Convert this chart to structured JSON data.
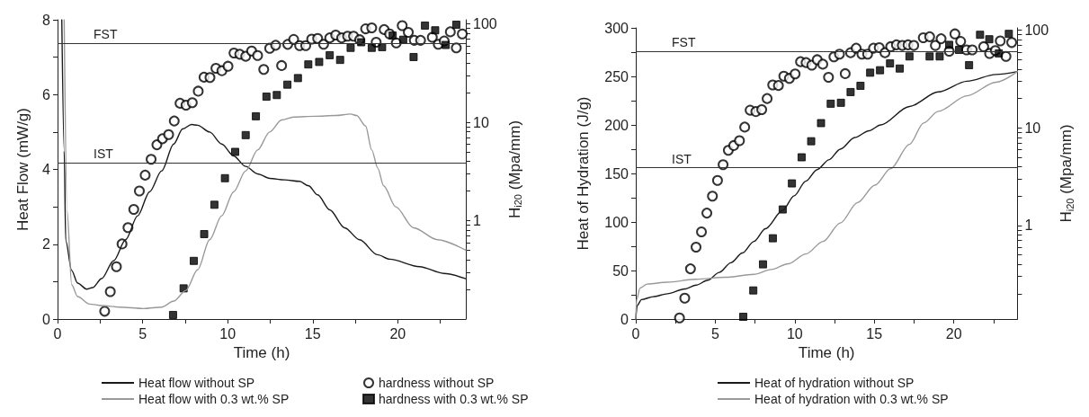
{
  "chart_data": [
    {
      "type": "line",
      "xlabel": "Time (h)",
      "ylabel": "Heat Flow (mW/g)",
      "y2label": "H$_{i20}$ (Mpa/mm)",
      "log": "y2",
      "legend": "bottom",
      "xlim": [
        0,
        24
      ],
      "xticks": [
        0,
        {
          "value": 2.5,
          "label": null
        },
        5,
        {
          "value": 7.5,
          "label": null
        },
        10,
        {
          "value": 12.5,
          "label": null
        },
        15,
        {
          "value": 17.5,
          "label": null
        },
        20,
        {
          "value": 22.5,
          "label": null
        }
      ],
      "ylim": [
        0,
        8
      ],
      "yticks": [
        0,
        {
          "value": 1,
          "label": null
        },
        2,
        {
          "value": 3,
          "label": null
        },
        4,
        {
          "value": 5,
          "label": null
        },
        6,
        {
          "value": 7,
          "label": null
        },
        8
      ],
      "y2lim": [
        0.1,
        110
      ],
      "y2ticks": [
        {
          "value": 0.2,
          "label": null
        },
        {
          "value": 0.3,
          "label": null
        },
        {
          "value": 0.4,
          "label": null
        },
        {
          "value": 0.5,
          "label": null
        },
        {
          "value": 0.6,
          "label": null
        },
        {
          "value": 0.7,
          "label": null
        },
        {
          "value": 0.8,
          "label": null
        },
        {
          "value": 0.9,
          "label": null
        },
        1,
        {
          "value": 2,
          "label": null
        },
        {
          "value": 3,
          "label": null
        },
        {
          "value": 4,
          "label": null
        },
        {
          "value": 5,
          "label": null
        },
        {
          "value": 6,
          "label": null
        },
        {
          "value": 7,
          "label": null
        },
        {
          "value": 8,
          "label": null
        },
        {
          "value": 9,
          "label": null
        },
        10,
        {
          "value": 20,
          "label": null
        },
        {
          "value": 30,
          "label": null
        },
        {
          "value": 40,
          "label": null
        },
        {
          "value": 50,
          "label": null
        },
        {
          "value": 60,
          "label": null
        },
        {
          "value": 70,
          "label": null
        },
        {
          "value": 80,
          "label": null
        },
        {
          "value": 90,
          "label": null
        },
        100
      ],
      "ref_lines": [
        {
          "axis": "y2",
          "value": 64,
          "label": "FST",
          "color": "#333333"
        },
        {
          "axis": "y2",
          "value": 3.9,
          "label": "IST",
          "color": "#333333"
        }
      ],
      "series": [
        {
          "name": "Heat flow without SP",
          "color": "#1a1a1a",
          "marker": "none",
          "x": [
            0.25,
            0.39,
            0.48,
            0.83,
            1.18,
            1.71,
            2.06,
            2.59,
            3.3,
            4.0,
            4.71,
            5.41,
            6.12,
            6.83,
            7.35,
            7.88,
            8.24,
            8.94,
            9.65,
            10.35,
            11.06,
            11.76,
            12.47,
            13.35,
            14.23,
            14.76,
            15.29,
            16.0,
            16.87,
            17.76,
            18.8,
            19.52,
            21.28,
            22.7,
            24
          ],
          "values": [
            8,
            4.5,
            2.1,
            1.3,
            0.96,
            0.8,
            0.84,
            1.08,
            1.56,
            2.12,
            2.76,
            3.4,
            3.96,
            4.68,
            5.08,
            5.2,
            5.18,
            5.0,
            4.68,
            4.36,
            4.08,
            3.88,
            3.76,
            3.72,
            3.68,
            3.56,
            3.32,
            2.92,
            2.44,
            2.12,
            1.72,
            1.6,
            1.4,
            1.22,
            1.08
          ]
        },
        {
          "name": "Heat flow with 0.3 wt.% SP",
          "color": "#999999",
          "marker": "none",
          "x": [
            0.39,
            0.56,
            0.83,
            1.18,
            1.89,
            2.59,
            3.65,
            5.06,
            6.12,
            6.83,
            7.53,
            8.24,
            8.94,
            9.65,
            10.35,
            11.06,
            11.76,
            12.47,
            13.17,
            13.88,
            15.11,
            16.35,
            17.23,
            17.58,
            18.11,
            18.47,
            18.82,
            19.17,
            19.88,
            20.93,
            22.34,
            24
          ],
          "values": [
            8,
            2.9,
            0.92,
            0.6,
            0.4,
            0.36,
            0.32,
            0.28,
            0.32,
            0.48,
            0.76,
            1.32,
            2.12,
            2.76,
            3.4,
            3.96,
            4.52,
            5.0,
            5.32,
            5.4,
            5.42,
            5.44,
            5.48,
            5.44,
            5.16,
            4.52,
            4.04,
            3.56,
            3.0,
            2.44,
            2.12,
            1.84
          ]
        },
        {
          "name": "hardness without SP",
          "type": "scatter",
          "axis": "y2",
          "color": "#000000",
          "marker": "circle",
          "x": [
            2.77,
            3.1,
            3.46,
            3.79,
            4.14,
            4.48,
            4.81,
            5.15,
            5.5,
            5.84,
            6.17,
            6.53,
            6.86,
            7.2,
            7.55,
            7.92,
            8.27,
            8.61,
            8.96,
            9.31,
            9.66,
            10.02,
            10.37,
            10.71,
            11.06,
            11.41,
            11.76,
            12.12,
            12.47,
            12.82,
            13.17,
            13.53,
            13.88,
            14.23,
            14.59,
            14.94,
            15.29,
            15.64,
            16.0,
            16.35,
            16.7,
            17.05,
            17.4,
            17.76,
            18.11,
            18.47,
            18.73,
            19.2,
            19.52,
            19.91,
            20.26,
            20.62,
            20.97,
            21.34,
            22.03,
            22.38,
            22.73,
            23.09,
            23.44,
            23.79
          ],
          "values": [
            0.12,
            0.19,
            0.34,
            0.58,
            0.85,
            1.3,
            2.0,
            2.9,
            4.2,
            5.9,
            6.8,
            7.5,
            10.3,
            15.6,
            14.9,
            15.8,
            20.7,
            28.7,
            28.5,
            35.3,
            33.4,
            37.1,
            50.5,
            49.1,
            46.8,
            53,
            47.7,
            34.4,
            56.5,
            60.6,
            37.7,
            61.9,
            69.5,
            60.1,
            60.1,
            70,
            71,
            62,
            72,
            77,
            72,
            75,
            75,
            69,
            89,
            91,
            65,
            87.5,
            79,
            64,
            96,
            82,
            68,
            68,
            73,
            62,
            67,
            83,
            57,
            79
          ]
        },
        {
          "name": "hardness with 0.3 wt.% SP",
          "type": "scatter",
          "axis": "y2",
          "color": "#000000",
          "marker": "square",
          "x": [
            6.79,
            7.41,
            8.01,
            8.62,
            9.22,
            9.84,
            10.44,
            11.06,
            11.66,
            12.28,
            12.89,
            13.51,
            14.13,
            14.74,
            15.38,
            16.0,
            16.61,
            17.23,
            17.85,
            18.47,
            19.08,
            19.7,
            20.32,
            20.93,
            21.6,
            22.2,
            22.82,
            23.44
          ],
          "values": [
            0.11,
            0.205,
            0.39,
            0.73,
            1.45,
            2.7,
            5.0,
            7.4,
            11.5,
            18.2,
            18.9,
            24.1,
            28.1,
            38.7,
            41,
            48,
            43,
            57,
            65,
            57,
            58,
            76,
            69,
            46,
            96,
            86,
            61,
            98
          ]
        }
      ]
    },
    {
      "type": "line",
      "xlabel": "Time (h)",
      "ylabel": "Heat of Hydration (J/g)",
      "y2label": "H$_{i20}$ (Mpa/mm)",
      "log": "y2",
      "legend": "bottom",
      "xlim": [
        0,
        24
      ],
      "xticks": [
        0,
        {
          "value": 2.5,
          "label": null
        },
        5,
        {
          "value": 7.5,
          "label": null
        },
        10,
        {
          "value": 12.5,
          "label": null
        },
        15,
        {
          "value": 17.5,
          "label": null
        },
        20,
        {
          "value": 22.5,
          "label": null
        }
      ],
      "ylim": [
        0,
        300
      ],
      "yticks": [
        0,
        {
          "value": 25,
          "label": null
        },
        50,
        {
          "value": 75,
          "label": null
        },
        100,
        {
          "value": 125,
          "label": null
        },
        150,
        {
          "value": 175,
          "label": null
        },
        200,
        {
          "value": 225,
          "label": null
        },
        250,
        {
          "value": 275,
          "label": null
        },
        300
      ],
      "y2lim": [
        0.11,
        106
      ],
      "y2ticks": [
        {
          "value": 0.2,
          "label": null
        },
        {
          "value": 0.3,
          "label": null
        },
        {
          "value": 0.4,
          "label": null
        },
        {
          "value": 0.5,
          "label": null
        },
        {
          "value": 0.6,
          "label": null
        },
        {
          "value": 0.7,
          "label": null
        },
        {
          "value": 0.8,
          "label": null
        },
        {
          "value": 0.9,
          "label": null
        },
        1,
        {
          "value": 2,
          "label": null
        },
        {
          "value": 3,
          "label": null
        },
        {
          "value": 4,
          "label": null
        },
        {
          "value": 5,
          "label": null
        },
        {
          "value": 6,
          "label": null
        },
        {
          "value": 7,
          "label": null
        },
        {
          "value": 8,
          "label": null
        },
        {
          "value": 9,
          "label": null
        },
        10,
        {
          "value": 20,
          "label": null
        },
        {
          "value": 30,
          "label": null
        },
        {
          "value": 40,
          "label": null
        },
        {
          "value": 50,
          "label": null
        },
        {
          "value": 60,
          "label": null
        },
        {
          "value": 70,
          "label": null
        },
        {
          "value": 80,
          "label": null
        },
        {
          "value": 90,
          "label": null
        },
        100
      ],
      "ref_lines": [
        {
          "axis": "y2",
          "value": 61,
          "label": "FST",
          "color": "#333333"
        },
        {
          "axis": "y2",
          "value": 3.9,
          "label": "IST",
          "color": "#333333"
        }
      ],
      "series": [
        {
          "name": "Heat of hydration without SP",
          "color": "#1a1a1a",
          "marker": "none",
          "x": [
            0,
            0.09,
            0.36,
            1.09,
            1.99,
            3.08,
            3.8,
            4.53,
            5.25,
            5.98,
            6.7,
            7.43,
            8.15,
            9.24,
            9.96,
            10.69,
            11.41,
            12.14,
            12.86,
            13.77,
            14.67,
            15.4,
            17.21,
            19.02,
            20.83,
            22.64,
            24
          ],
          "values": [
            0,
            14,
            20,
            23,
            26,
            31,
            35,
            40,
            48,
            58,
            68,
            80,
            93,
            112,
            127,
            142,
            154,
            164,
            175,
            187,
            194,
            200,
            219,
            234,
            245,
            252,
            255
          ]
        },
        {
          "name": "Heat of hydration with 0.3 wt.% SP",
          "color": "#999999",
          "marker": "none",
          "x": [
            0,
            0.05,
            0.27,
            0.72,
            1.99,
            3.8,
            5.62,
            7.43,
            8.51,
            9.6,
            10.69,
            11.78,
            12.86,
            13.95,
            15.04,
            16.03,
            17.21,
            18.1,
            19.02,
            20.83,
            22.64,
            24
          ],
          "values": [
            0,
            20,
            32,
            36,
            38,
            41,
            43,
            46,
            51,
            57,
            67,
            80,
            99,
            120,
            138,
            155,
            180,
            202,
            214,
            230,
            244,
            255
          ]
        },
        {
          "name": "hardness without SP",
          "type": "scatter",
          "axis": "y2",
          "color": "#000000",
          "marker": "circle",
          "x": [
            2.75,
            3.08,
            3.44,
            3.79,
            4.13,
            4.47,
            4.82,
            5.14,
            5.49,
            5.82,
            6.16,
            6.52,
            6.85,
            7.19,
            7.55,
            7.92,
            8.26,
            8.61,
            8.97,
            9.31,
            9.66,
            10.02,
            10.36,
            10.71,
            11.07,
            11.41,
            11.76,
            12.12,
            12.46,
            12.81,
            13.17,
            13.51,
            13.86,
            14.22,
            14.58,
            14.95,
            15.31,
            15.67,
            16.03,
            16.39,
            16.76,
            17.12,
            17.48,
            18.08,
            18.48,
            18.84,
            19.2,
            19.71,
            20.07,
            20.43,
            20.8,
            21.16,
            21.88,
            22.25,
            22.61,
            22.92,
            23.28,
            23.64
          ],
          "values": [
            0.113,
            0.18,
            0.36,
            0.6,
            0.86,
            1.34,
            2.0,
            2.9,
            4.2,
            5.9,
            6.6,
            7.4,
            10.2,
            15.2,
            14.7,
            15.4,
            20,
            27.6,
            27.2,
            33.9,
            32.2,
            35.8,
            47.7,
            46.7,
            44,
            50,
            45,
            33,
            53.5,
            57,
            36,
            59,
            65.6,
            57,
            57,
            65.6,
            66.5,
            59,
            68,
            71,
            70,
            71,
            70,
            84,
            86,
            70,
            82,
            61,
            92,
            77,
            63,
            63,
            68,
            58,
            62,
            78,
            54,
            75
          ]
        },
        {
          "name": "hardness with 0.3 wt.% SP",
          "type": "scatter",
          "axis": "y2",
          "color": "#000000",
          "marker": "square",
          "x": [
            6.76,
            7.39,
            8.0,
            8.62,
            9.24,
            9.82,
            10.43,
            11.03,
            11.65,
            12.26,
            12.9,
            13.51,
            14.13,
            14.74,
            15.36,
            15.99,
            16.6,
            17.21,
            18.48,
            19.11,
            19.71,
            20.33,
            20.96,
            21.65,
            22.23,
            22.83,
            23.46
          ],
          "values": [
            0.116,
            0.216,
            0.4,
            0.74,
            1.46,
            2.7,
            5.0,
            7.3,
            11.2,
            17.7,
            18.1,
            23.3,
            27,
            36.8,
            39,
            45.8,
            40.6,
            54,
            54,
            54,
            71,
            63,
            44,
            90,
            81,
            58,
            92
          ]
        }
      ]
    }
  ]
}
